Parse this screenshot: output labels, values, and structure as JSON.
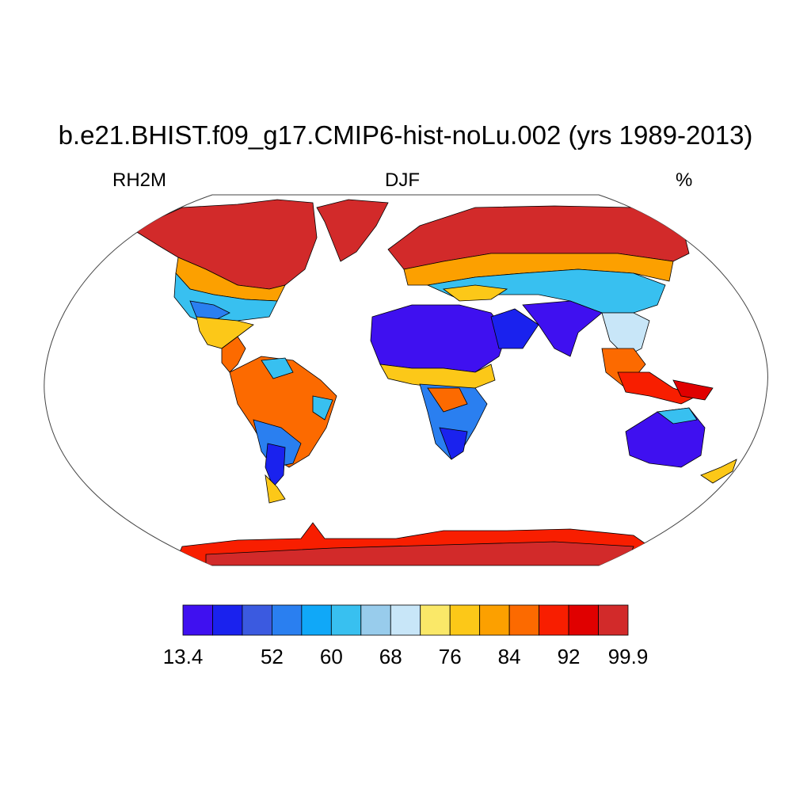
{
  "title": "b.e21.BHIST.f09_g17.CMIP6-hist-noLu.002 (yrs 1989-2013)",
  "left_label": "RH2M",
  "center_label": "DJF",
  "right_label": "%",
  "colorbar": {
    "colors": [
      "#3f10f0",
      "#1a22ee",
      "#3b5ae0",
      "#2a7ff0",
      "#10a8f8",
      "#38c0f0",
      "#98ccec",
      "#c8e6f8",
      "#fae868",
      "#fcc818",
      "#fca000",
      "#fc6a00",
      "#f81e00",
      "#e00000",
      "#d22a2a"
    ],
    "tick_labels": [
      {
        "text": "13.4",
        "boundary": 0
      },
      {
        "text": "52",
        "boundary": 3
      },
      {
        "text": "60",
        "boundary": 5
      },
      {
        "text": "68",
        "boundary": 7
      },
      {
        "text": "76",
        "boundary": 9
      },
      {
        "text": "84",
        "boundary": 11
      },
      {
        "text": "92",
        "boundary": 13
      },
      {
        "text": "99.9",
        "boundary": 15
      }
    ]
  }
}
